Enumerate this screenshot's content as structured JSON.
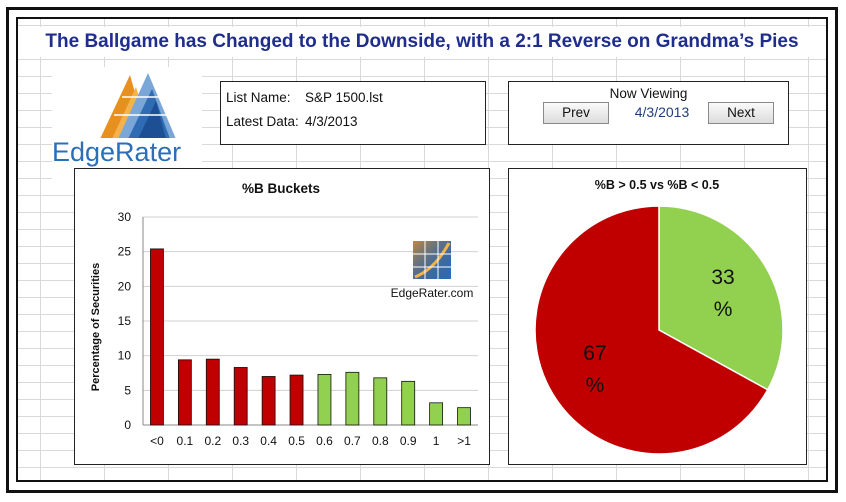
{
  "header": {
    "title": "The Ballgame has Changed to the Downside, with a 2:1 Reverse on Grandma’s Pies"
  },
  "logo": {
    "text": "EdgeRater",
    "icon": "edgerater-logo-icon"
  },
  "info": {
    "list_name_label": "List Name:",
    "list_name_value": "S&P 1500.lst",
    "latest_data_label": "Latest Data:",
    "latest_data_value": "4/3/2013"
  },
  "nav": {
    "title": "Now Viewing",
    "prev_label": "Prev",
    "date": "4/3/2013",
    "next_label": "Next"
  },
  "watermark": {
    "text": "EdgeRater.com"
  },
  "colors": {
    "red": "#c00000",
    "green": "#92d050",
    "title_blue": "#1f2d8c"
  },
  "chart_data": [
    {
      "type": "bar",
      "title": "%B Buckets",
      "ylabel": "Percentage of Securities",
      "xlabel": "",
      "categories": [
        "<0",
        "0.1",
        "0.2",
        "0.3",
        "0.4",
        "0.5",
        "0.6",
        "0.7",
        "0.8",
        "0.9",
        "1",
        ">1"
      ],
      "values": [
        25.4,
        9.4,
        9.5,
        8.3,
        7.0,
        7.2,
        7.3,
        7.6,
        6.8,
        6.3,
        3.2,
        2.5
      ],
      "bar_colors": [
        "red",
        "red",
        "red",
        "red",
        "red",
        "red",
        "green",
        "green",
        "green",
        "green",
        "green",
        "green"
      ],
      "ylim": [
        0,
        30
      ],
      "yticks": [
        0,
        5,
        10,
        15,
        20,
        25,
        30
      ],
      "grid": true
    },
    {
      "type": "pie",
      "title": "%B > 0.5 vs %B < 0.5",
      "slices": [
        {
          "value": 33,
          "label_num": "33",
          "label_unit": "%",
          "color": "green"
        },
        {
          "value": 67,
          "label_num": "67",
          "label_unit": "%",
          "color": "red"
        }
      ]
    }
  ]
}
